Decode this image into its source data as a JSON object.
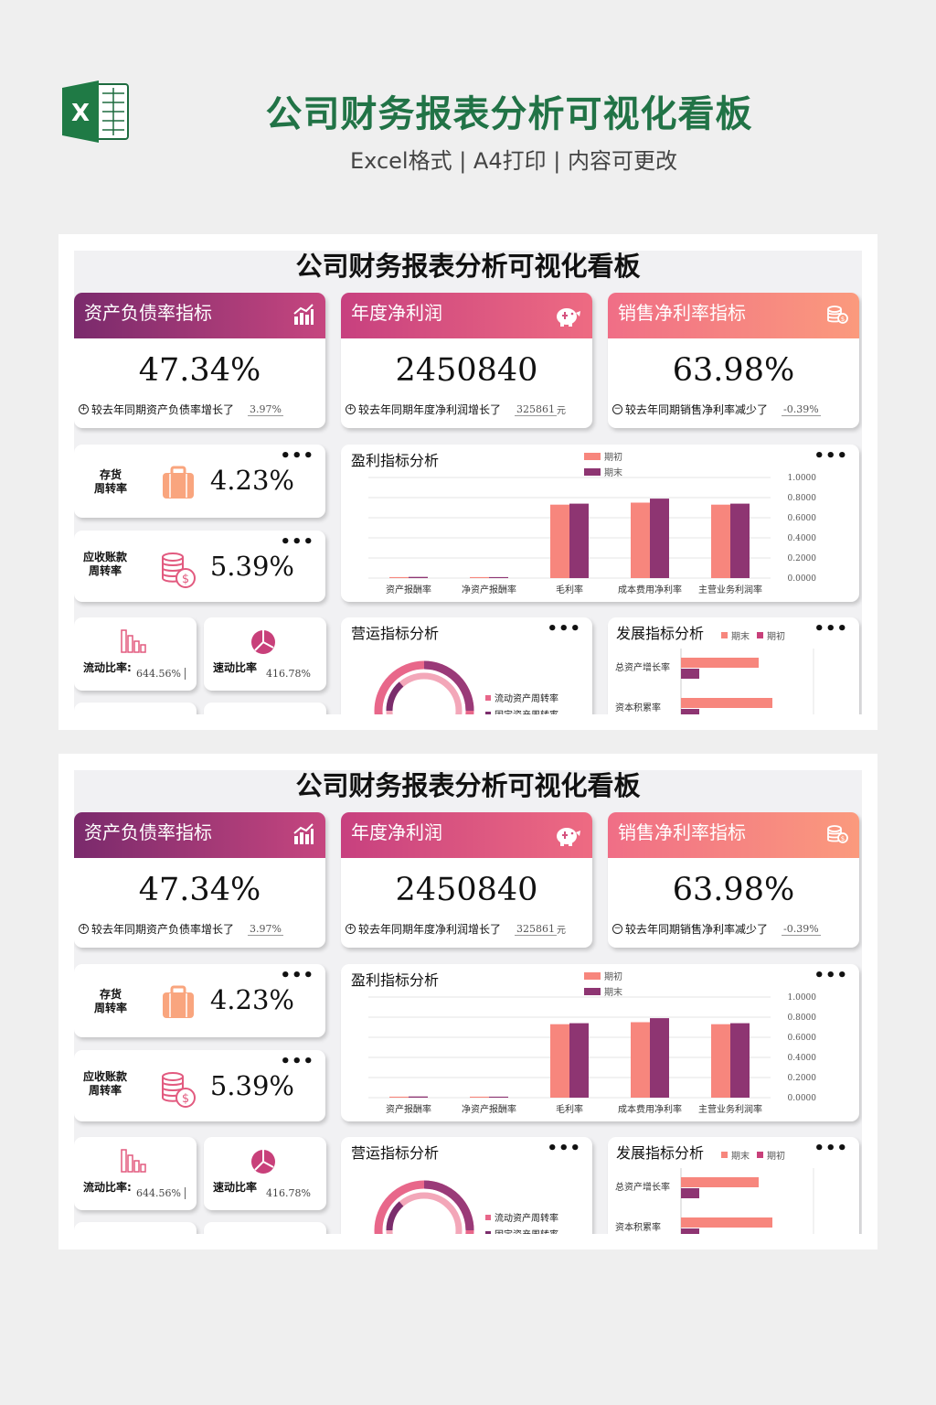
{
  "header": {
    "title": "公司财务报表分析可视化看板",
    "subtitle": "Excel格式 | A4打印 | 内容可更改",
    "logo_letter": "X"
  },
  "dashboard": {
    "title": "公司财务报表分析可视化看板",
    "kpis": [
      {
        "title": "资产负债率指标",
        "value": "47.34%",
        "desc": "较去年同期资产负债率增长了",
        "change": "3.97%",
        "unit": "",
        "sign": "+",
        "icon": "bar-chart-icon"
      },
      {
        "title": "年度净利润",
        "value": "2450840",
        "desc": "较去年同期年度净利润增长了",
        "change": "325861",
        "unit": "元",
        "sign": "+",
        "icon": "piggy-bank-icon"
      },
      {
        "title": "销售净利率指标",
        "value": "63.98%",
        "desc": "较去年同期销售净利率减少了",
        "change": "-0.39%",
        "unit": "",
        "sign": "−",
        "icon": "coins-icon"
      }
    ],
    "inventory": {
      "label_line1": "存货",
      "label_line2": "周转率",
      "value": "4.23%",
      "icon": "briefcase-icon"
    },
    "receivable": {
      "label_line1": "应收账款",
      "label_line2": "周转率",
      "value": "5.39%",
      "icon": "coin-stack-icon"
    },
    "current_ratio": {
      "label": "流动比率:",
      "value": "644.56%",
      "icon": "column-icon"
    },
    "quick_ratio": {
      "label": "速动比率",
      "value": "416.78%",
      "icon": "pie-icon"
    },
    "more_label": "•••",
    "profit_panel": {
      "title": "盈利指标分析"
    },
    "operation_panel": {
      "title": "营运指标分析",
      "legend": [
        "流动资产周转率",
        "固定资产周转率"
      ]
    },
    "growth_panel": {
      "title": "发展指标分析",
      "legend": [
        "期末",
        "期初"
      ]
    }
  },
  "chart_data": [
    {
      "type": "bar",
      "title": "盈利指标分析",
      "categories": [
        "资产报酬率",
        "净资产报酬率",
        "毛利率",
        "成本费用净利率",
        "主营业务利润率"
      ],
      "series": [
        {
          "name": "期初",
          "values": [
            0.01,
            0.01,
            0.73,
            0.75,
            0.73
          ],
          "color": "#f7867d"
        },
        {
          "name": "期末",
          "values": [
            0.012,
            0.01,
            0.74,
            0.79,
            0.74
          ],
          "color": "#8e3572"
        }
      ],
      "ylim": [
        0,
        1
      ],
      "yticks": [
        "0.0000",
        "0.2000",
        "0.4000",
        "0.6000",
        "0.8000",
        "1.0000"
      ],
      "legend_position": "top"
    },
    {
      "type": "bar",
      "orientation": "horizontal",
      "title": "发展指标分析",
      "categories": [
        "总资产增长率",
        "资本积累率"
      ],
      "series": [
        {
          "name": "期末",
          "values": [
            0.85,
            1.0
          ],
          "color": "#f7867d"
        },
        {
          "name": "期初",
          "values": [
            0.2,
            0.2
          ],
          "color": "#8e3572"
        }
      ],
      "legend_position": "top"
    }
  ],
  "colors": {
    "accent": "#217346",
    "series_a": "#f7867d",
    "series_b": "#8e3572"
  }
}
